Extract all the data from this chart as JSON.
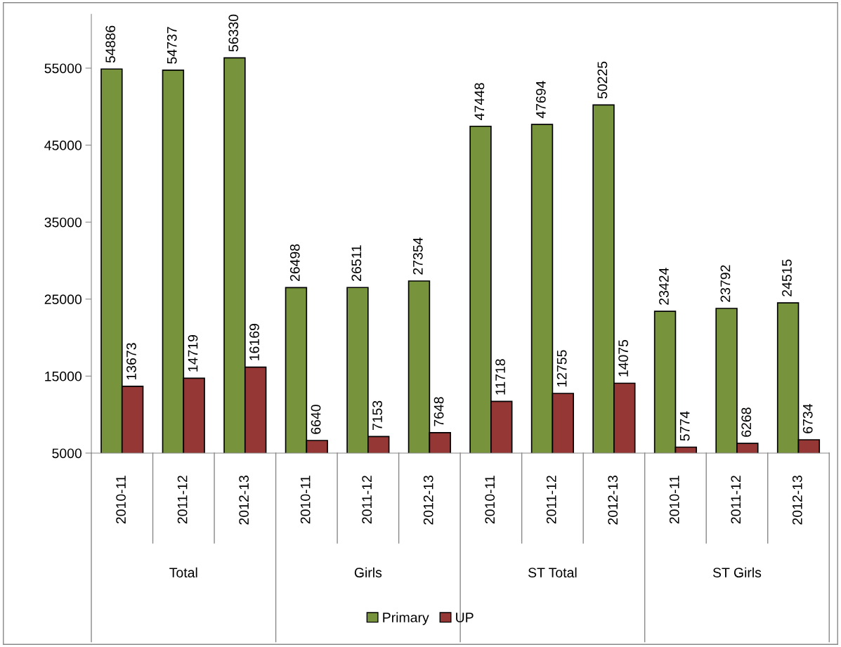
{
  "chart_data": {
    "type": "bar",
    "categories": [
      "2010-11",
      "2011-12",
      "2012-13",
      "2010-11",
      "2011-12",
      "2012-13",
      "2010-11",
      "2011-12",
      "2012-13",
      "2010-11",
      "2011-12",
      "2012-13"
    ],
    "annotations": [
      "Total",
      "Girls",
      "ST Total",
      "ST Girls"
    ],
    "series": [
      {
        "name": "Primary",
        "color": "#77933c",
        "values": [
          54886,
          54737,
          56330,
          26498,
          26511,
          27354,
          47448,
          47694,
          50225,
          23424,
          23792,
          24515
        ]
      },
      {
        "name": "UP",
        "color": "#953735",
        "values": [
          13673,
          14719,
          16169,
          6640,
          7153,
          7648,
          11718,
          12755,
          14075,
          5774,
          6268,
          6734
        ]
      }
    ],
    "ylim": [
      5000,
      62000
    ],
    "yticks": [
      5000,
      15000,
      25000,
      35000,
      45000,
      55000
    ],
    "data_labels": true,
    "grid": false,
    "legend": "bottom"
  }
}
